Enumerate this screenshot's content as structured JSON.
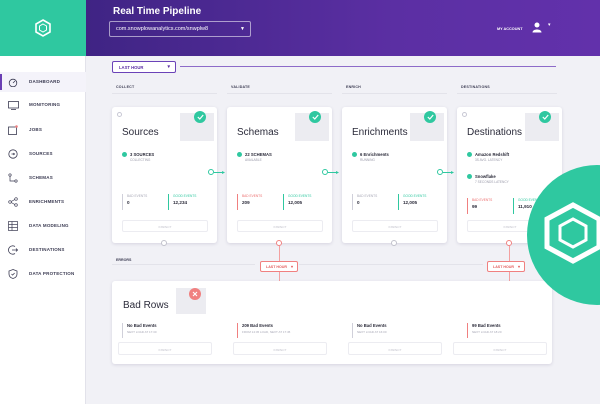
{
  "header": {
    "title": "Real Time Pipeline",
    "pipeline_url": "com.snowplowanalytics.com/snwplw8",
    "account_label": "MY ACCOUNT"
  },
  "sidebar": {
    "items": [
      {
        "label": "DASHBOARD",
        "icon": "dashboard-icon",
        "active": true
      },
      {
        "label": "MONITORING",
        "icon": "monitor-icon"
      },
      {
        "label": "JOBS",
        "icon": "jobs-icon"
      },
      {
        "label": "SOURCES",
        "icon": "sources-icon"
      },
      {
        "label": "SCHEMAS",
        "icon": "schemas-icon"
      },
      {
        "label": "ENRICHMENTS",
        "icon": "enrichments-icon"
      },
      {
        "label": "DATA MODELING",
        "icon": "data-modeling-icon"
      },
      {
        "label": "DESTINATIONS",
        "icon": "destinations-icon"
      },
      {
        "label": "DATA PROTECTION",
        "icon": "data-protection-icon"
      }
    ]
  },
  "time_range": "LAST HOUR",
  "stages": {
    "collect": "COLLECT",
    "validate": "VALIDATE",
    "enrich": "ENRICH",
    "destinations": "DESTINATIONS"
  },
  "cards": {
    "sources": {
      "title": "Sources",
      "status": "3 SOURCES",
      "status_sub": "COLLECTING",
      "bad_label": "BAD EVENTS",
      "bad_value": "0",
      "good_label": "GOOD EVENTS",
      "good_value": "12,234",
      "inspect": "INSPECT"
    },
    "schemas": {
      "title": "Schemas",
      "status": "22 SCHEMAS",
      "status_sub": "AVAILABLE",
      "bad_label": "BAD EVENTS",
      "bad_value": "209",
      "good_label": "GOOD EVENTS",
      "good_value": "12,005",
      "inspect": "INSPECT"
    },
    "enrichments": {
      "title": "Enrichments",
      "status": "6 Enrichments",
      "status_sub": "RUNNING",
      "bad_label": "BAD EVENTS",
      "bad_value": "0",
      "good_label": "GOOD EVENTS",
      "good_value": "12,005",
      "inspect": "INSPECT"
    },
    "destinations": {
      "title": "Destinations",
      "status": "Amazon Redshift",
      "status_sub": "3S AVG. LATENCY",
      "status2": "Snowflake",
      "status2_sub": "7 SECONDS LATENCY",
      "bad_label": "BAD EVENTS",
      "bad_value": "99",
      "good_label": "GOOD EVENTS",
      "good_value": "11,910",
      "inspect": "INSPECT"
    }
  },
  "errors": {
    "label": "ERRORS",
    "dropdown_1": "LAST HOUR",
    "dropdown_2": "LAST HOUR",
    "card_title": "Bad Rows",
    "columns": [
      {
        "headline": "No Bad Events",
        "sub": "NEXT LOAD AT 17:30"
      },
      {
        "headline": "209 Bad Events",
        "sub": "FROM 14:45 LOAD, NEXT AT 17:45"
      },
      {
        "headline": "No Bad Events",
        "sub": "NEXT LOAD AT 16:00"
      },
      {
        "headline": "99 Bad Events",
        "sub": "NEXT LOAD AT 18:20"
      }
    ],
    "inspect": "INSPECT"
  },
  "colors": {
    "brand": "#2fc8a0",
    "header": "#5b2fa3",
    "error": "#f08080"
  }
}
